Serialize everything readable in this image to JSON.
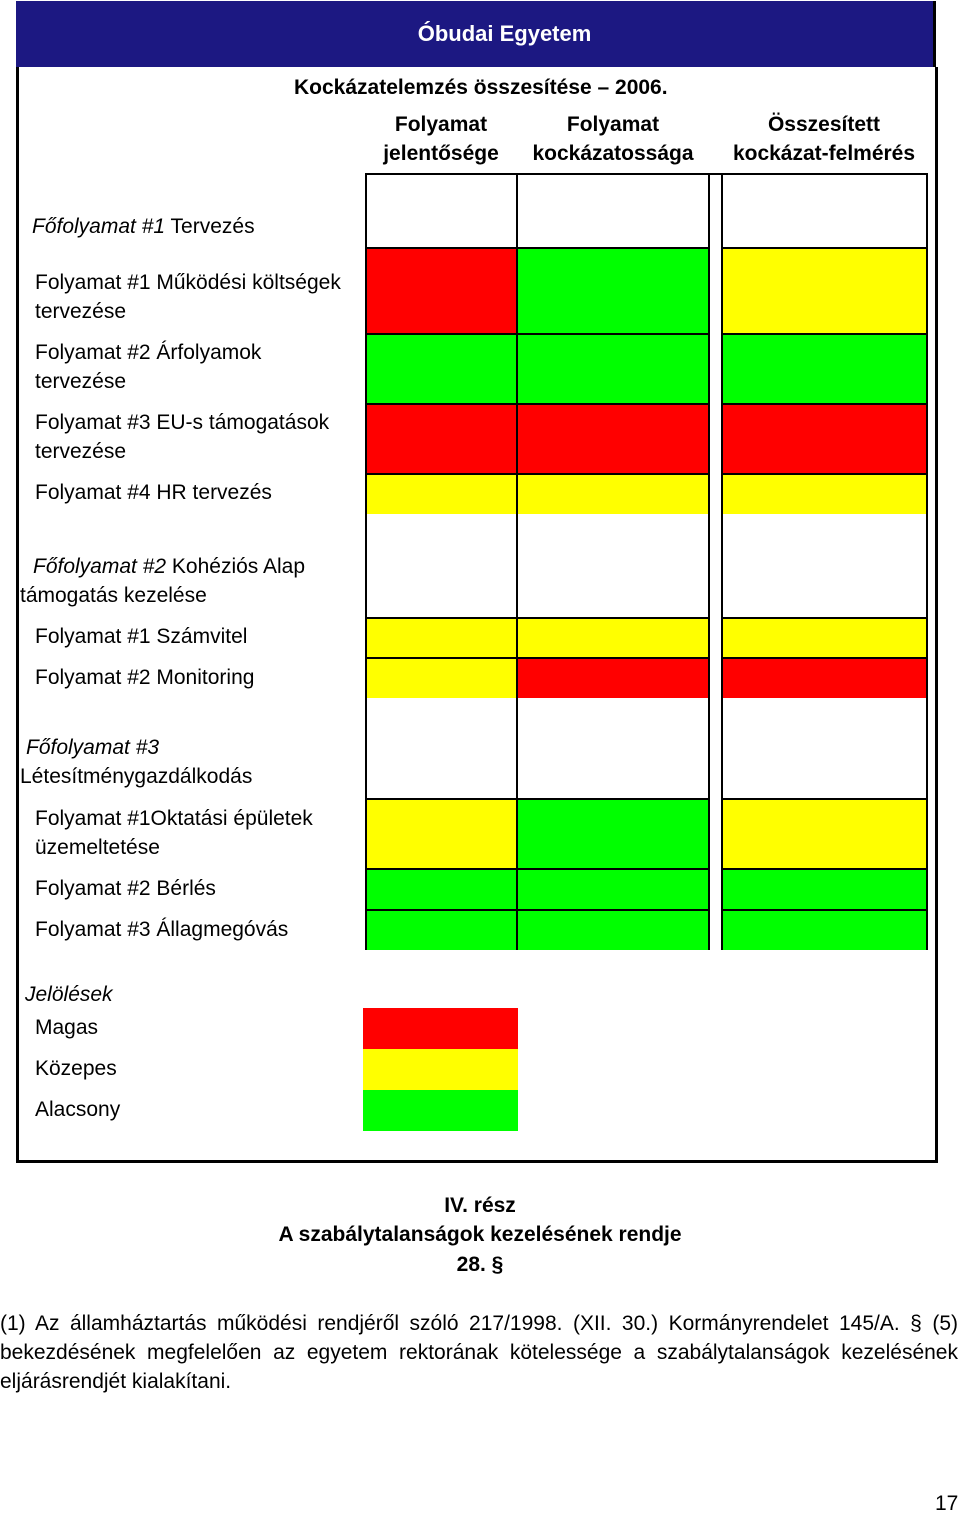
{
  "header": {
    "institution": "Óbudai Egyetem"
  },
  "table": {
    "title": "Kockázatelemzés összesítése – 2006.",
    "columns": [
      "Folyamat jelentősége",
      "Folyamat kockázatossága",
      "Összesített kockázat-felmérés"
    ],
    "groups": [
      {
        "prefix": "Főfolyamat #1",
        "name": "Tervezés",
        "rows": [
          {
            "label": "Folyamat #1 Működési költségek tervezése",
            "levels": [
              "Magas",
              "Alacsony",
              "Közepes"
            ]
          },
          {
            "label": "Folyamat #2 Árfolyamok tervezése",
            "levels": [
              "Alacsony",
              "Alacsony",
              "Alacsony"
            ]
          },
          {
            "label": "Folyamat #3 EU-s támogatások tervezése",
            "levels": [
              "Magas",
              "Magas",
              "Magas"
            ]
          },
          {
            "label": "Folyamat #4 HR tervezés",
            "levels": [
              "Közepes",
              "Közepes",
              "Közepes"
            ]
          }
        ]
      },
      {
        "prefix": "Főfolyamat #2",
        "name": "Kohéziós Alap támogatás kezelése",
        "rows": [
          {
            "label": "Folyamat #1 Számvitel",
            "levels": [
              "Közepes",
              "Közepes",
              "Közepes"
            ]
          },
          {
            "label": "Folyamat #2 Monitoring",
            "levels": [
              "Közepes",
              "Magas",
              "Magas"
            ]
          }
        ]
      },
      {
        "prefix": "Főfolyamat #3",
        "name": "Létesítménygazdálkodás",
        "rows": [
          {
            "label": "Folyamat #1Oktatási épületek üzemeltetése",
            "levels": [
              "Közepes",
              "Alacsony",
              "Közepes"
            ]
          },
          {
            "label": "Folyamat #2 Bérlés",
            "levels": [
              "Alacsony",
              "Alacsony",
              "Alacsony"
            ]
          },
          {
            "label": "Folyamat #3 Állagmegóvás",
            "levels": [
              "Alacsony",
              "Alacsony",
              "Alacsony"
            ]
          }
        ]
      }
    ],
    "legend": {
      "title": "Jelölések",
      "items": [
        {
          "label": "Magas",
          "color": "#ff0000"
        },
        {
          "label": "Közepes",
          "color": "#ffff00"
        },
        {
          "label": "Alacsony",
          "color": "#00ff00"
        }
      ]
    }
  },
  "section": {
    "part": "IV. rész",
    "heading": "A szabálytalanságok kezelésének rendje",
    "paragraph_no": "28. §",
    "text": "(1) Az államháztartás működési rendjéről szóló 217/1998. (XII. 30.) Kormányrendelet 145/A. § (5) bekezdésének megfelelően az egyetem rektorának kötelessége a szabálytalanságok kezelésének eljárásrendjét kialakítani."
  },
  "page_number": "17"
}
